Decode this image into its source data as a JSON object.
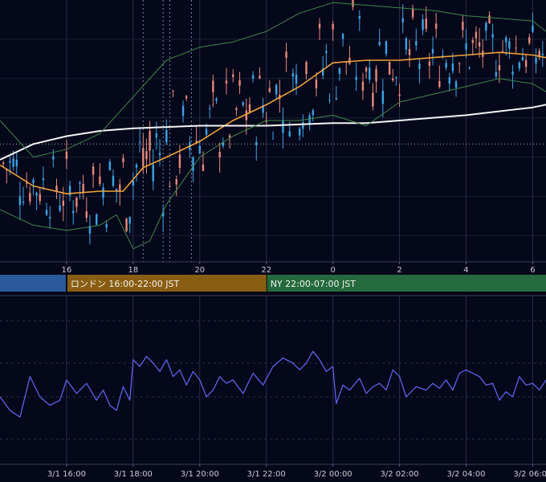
{
  "chart_data": [
    {
      "type": "candlestick",
      "title": "",
      "x_tick_labels": [
        "16",
        "18",
        "20",
        "22",
        "0",
        "2",
        "4",
        "6"
      ],
      "x_tick_hours": [
        16,
        18,
        20,
        22,
        24,
        26,
        28,
        30
      ],
      "x_range_hours": [
        14.0,
        30.4
      ],
      "y_range": [
        0,
        100
      ],
      "grid": true,
      "reference_line": 45,
      "sessions": [
        {
          "name": "",
          "start": 12,
          "end": 16.0,
          "color": "#2a5a9c"
        },
        {
          "name": "ロンドン 16:00-22:00 JST",
          "start": 16.0,
          "end": 22.0,
          "color": "#8a5e12"
        },
        {
          "name": "NY 22:00-07:00 JST",
          "start": 22.0,
          "end": 31.0,
          "color": "#256a3c"
        }
      ],
      "series": [
        {
          "kind": "ma_short",
          "color": "#f2a33a",
          "points": [
            [
              14.0,
              37
            ],
            [
              15.0,
              29
            ],
            [
              16.0,
              26
            ],
            [
              17.0,
              27
            ],
            [
              17.7,
              27
            ],
            [
              18.3,
              36
            ],
            [
              19.0,
              40
            ],
            [
              20.0,
              46
            ],
            [
              21.0,
              54
            ],
            [
              22.0,
              60
            ],
            [
              23.0,
              67
            ],
            [
              24.0,
              76
            ],
            [
              25.0,
              77
            ],
            [
              26.0,
              77
            ],
            [
              27.0,
              78
            ],
            [
              28.0,
              79
            ],
            [
              29.0,
              80
            ],
            [
              30.0,
              79
            ],
            [
              30.4,
              78
            ]
          ]
        },
        {
          "kind": "ma_long",
          "color": "#f5f5f5",
          "points": [
            [
              14.0,
              39
            ],
            [
              15.0,
              45
            ],
            [
              16.0,
              48
            ],
            [
              17.0,
              50
            ],
            [
              18.0,
              51
            ],
            [
              20.0,
              52
            ],
            [
              22.0,
              52
            ],
            [
              24.0,
              53
            ],
            [
              25.0,
              53
            ],
            [
              26.0,
              54
            ],
            [
              28.0,
              56
            ],
            [
              30.0,
              59
            ],
            [
              30.4,
              60
            ]
          ]
        },
        {
          "kind": "band_upper",
          "color": "#3e8a4a",
          "points": [
            [
              14.0,
              54
            ],
            [
              15.0,
              40
            ],
            [
              16.0,
              43
            ],
            [
              17.0,
              49
            ],
            [
              18.0,
              63
            ],
            [
              19.0,
              77
            ],
            [
              20.0,
              82
            ],
            [
              21.0,
              84
            ],
            [
              22.0,
              88
            ],
            [
              23.0,
              95
            ],
            [
              24.0,
              99
            ],
            [
              25.0,
              98
            ],
            [
              26.0,
              97
            ],
            [
              27.0,
              96
            ],
            [
              28.0,
              94
            ],
            [
              29.0,
              93
            ],
            [
              30.0,
              92
            ],
            [
              30.4,
              88
            ]
          ]
        },
        {
          "kind": "band_lower",
          "color": "#3e8a4a",
          "points": [
            [
              14.0,
              20
            ],
            [
              15.0,
              14
            ],
            [
              16.0,
              12
            ],
            [
              17.0,
              14
            ],
            [
              17.5,
              18
            ],
            [
              18.0,
              5
            ],
            [
              18.5,
              8
            ],
            [
              19.0,
              22
            ],
            [
              20.0,
              40
            ],
            [
              21.0,
              48
            ],
            [
              22.0,
              54
            ],
            [
              23.0,
              54
            ],
            [
              24.0,
              56
            ],
            [
              25.0,
              52
            ],
            [
              26.0,
              61
            ],
            [
              27.0,
              64
            ],
            [
              28.0,
              67
            ],
            [
              29.0,
              70
            ],
            [
              30.0,
              68
            ],
            [
              30.4,
              65
            ]
          ]
        }
      ]
    },
    {
      "type": "line",
      "title": "",
      "x_tick_labels": [
        "3/1 16:00",
        "3/1 18:00",
        "3/1 20:00",
        "3/1 22:00",
        "3/2 00:00",
        "3/2 02:00",
        "3/2 04:00",
        "3/2 06:00"
      ],
      "x_tick_hours": [
        16,
        18,
        20,
        22,
        24,
        26,
        28,
        30
      ],
      "x_range_hours": [
        14.0,
        30.4
      ],
      "y_range": [
        0,
        100
      ],
      "grid": true,
      "series": [
        {
          "name": "",
          "color": "#5b63e8",
          "points": [
            [
              14.0,
              40
            ],
            [
              14.3,
              32
            ],
            [
              14.6,
              28
            ],
            [
              14.9,
              52
            ],
            [
              15.2,
              40
            ],
            [
              15.5,
              35
            ],
            [
              15.8,
              38
            ],
            [
              16.0,
              50
            ],
            [
              16.3,
              42
            ],
            [
              16.6,
              48
            ],
            [
              16.9,
              38
            ],
            [
              17.1,
              44
            ],
            [
              17.3,
              35
            ],
            [
              17.5,
              32
            ],
            [
              17.7,
              46
            ],
            [
              17.9,
              38
            ],
            [
              18.0,
              62
            ],
            [
              18.2,
              58
            ],
            [
              18.4,
              64
            ],
            [
              18.6,
              60
            ],
            [
              18.8,
              55
            ],
            [
              19.0,
              62
            ],
            [
              19.2,
              52
            ],
            [
              19.4,
              56
            ],
            [
              19.6,
              47
            ],
            [
              19.8,
              55
            ],
            [
              20.0,
              50
            ],
            [
              20.2,
              40
            ],
            [
              20.4,
              44
            ],
            [
              20.6,
              52
            ],
            [
              20.8,
              48
            ],
            [
              21.0,
              50
            ],
            [
              21.3,
              42
            ],
            [
              21.6,
              54
            ],
            [
              21.9,
              47
            ],
            [
              22.2,
              58
            ],
            [
              22.5,
              63
            ],
            [
              22.8,
              60
            ],
            [
              23.0,
              56
            ],
            [
              23.2,
              60
            ],
            [
              23.4,
              67
            ],
            [
              23.6,
              62
            ],
            [
              23.8,
              55
            ],
            [
              24.0,
              58
            ],
            [
              24.1,
              36
            ],
            [
              24.3,
              47
            ],
            [
              24.5,
              44
            ],
            [
              24.8,
              51
            ],
            [
              25.0,
              42
            ],
            [
              25.2,
              46
            ],
            [
              25.4,
              48
            ],
            [
              25.6,
              44
            ],
            [
              25.8,
              56
            ],
            [
              26.0,
              52
            ],
            [
              26.2,
              40
            ],
            [
              26.5,
              46
            ],
            [
              26.8,
              44
            ],
            [
              27.0,
              48
            ],
            [
              27.2,
              45
            ],
            [
              27.4,
              50
            ],
            [
              27.6,
              44
            ],
            [
              27.8,
              54
            ],
            [
              28.0,
              56
            ],
            [
              28.2,
              54
            ],
            [
              28.4,
              52
            ],
            [
              28.6,
              47
            ],
            [
              28.8,
              48
            ],
            [
              29.0,
              38
            ],
            [
              29.2,
              43
            ],
            [
              29.4,
              40
            ],
            [
              29.6,
              52
            ],
            [
              29.8,
              47
            ],
            [
              30.0,
              48
            ],
            [
              30.2,
              44
            ],
            [
              30.4,
              50
            ]
          ]
        }
      ]
    }
  ]
}
